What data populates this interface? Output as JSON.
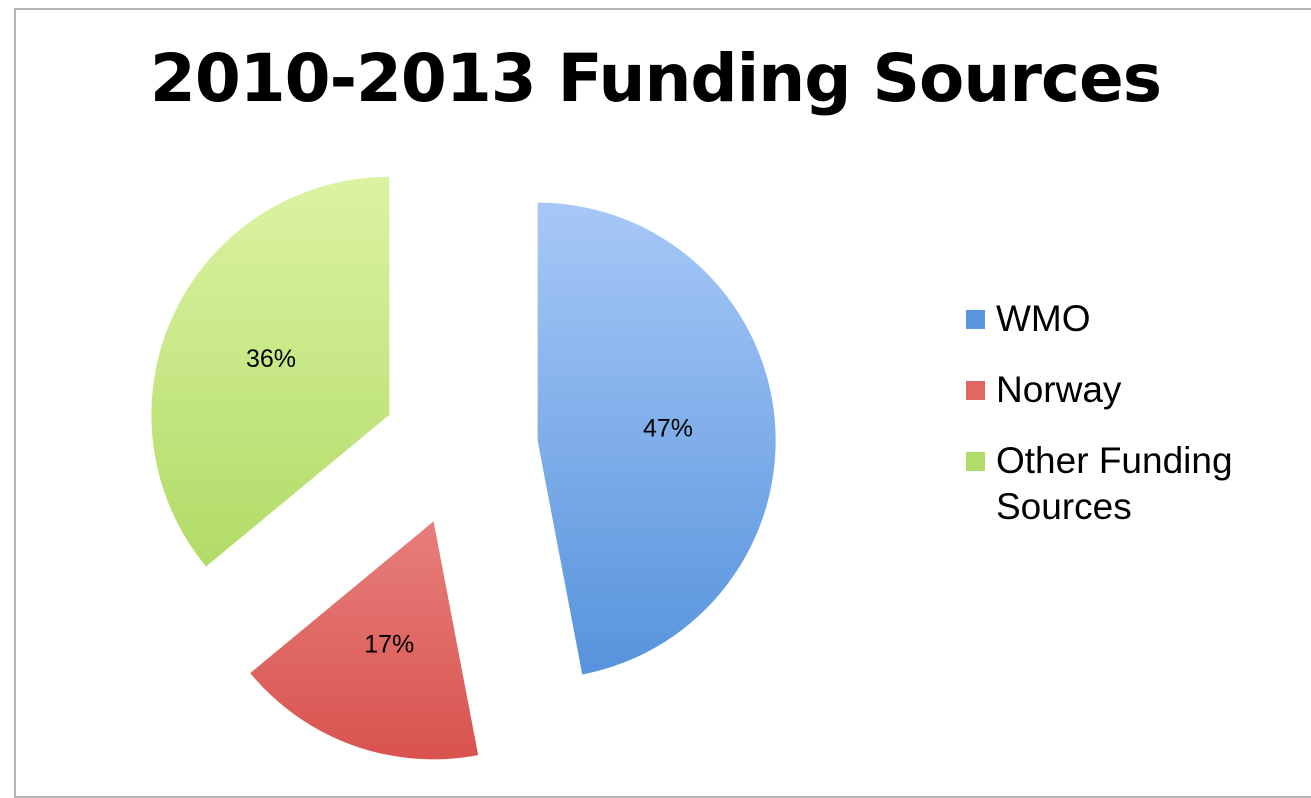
{
  "chart_data": {
    "type": "pie",
    "title": "2010-2013 Funding Sources",
    "legend_position": "right",
    "slices": [
      {
        "name": "WMO",
        "value": 47,
        "label": "47%",
        "color_top": "#a7c8f7",
        "color_bottom": "#5693dc"
      },
      {
        "name": "Norway",
        "value": 17,
        "label": "17%",
        "color_top": "#f4a9a7",
        "color_bottom": "#d9534f"
      },
      {
        "name": "Other Funding Sources",
        "value": 36,
        "label": "36%",
        "color_top": "#dcf3a3",
        "color_bottom": "#a8d65a"
      }
    ],
    "legend": [
      {
        "label": "WMO",
        "color": "#5b95de"
      },
      {
        "label": "Norway",
        "color": "#e06762"
      },
      {
        "label": "Other Funding Sources",
        "color": "#b2dc6a"
      }
    ]
  }
}
